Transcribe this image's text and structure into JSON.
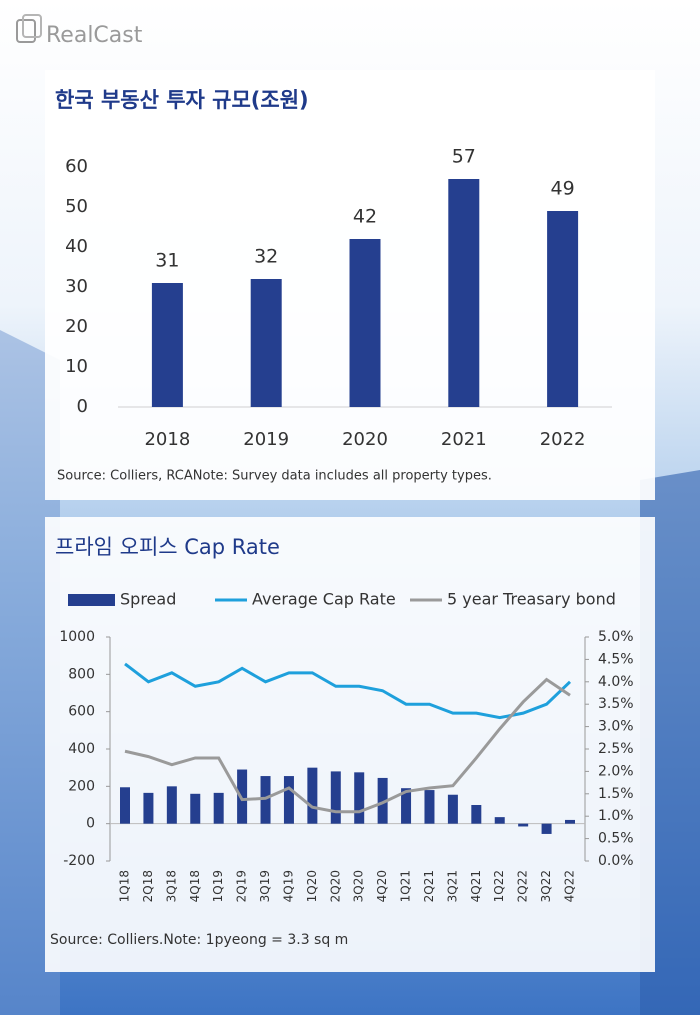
{
  "brand": "RealCast",
  "chart_data": [
    {
      "type": "bar",
      "title": "한국 부동산 투자 규모(조원)",
      "categories": [
        "2018",
        "2019",
        "2020",
        "2021",
        "2022"
      ],
      "values": [
        31,
        32,
        42,
        57,
        49
      ],
      "color": "#253f8f",
      "ylim": [
        0,
        60
      ],
      "yticks": [
        0,
        10,
        20,
        30,
        40,
        50,
        60
      ],
      "grid": false,
      "note": "Source: Colliers, RCANote: Survey data includes all property types."
    },
    {
      "type": "combo",
      "title": "프라임 오피스 Cap Rate",
      "categories": [
        "1Q18",
        "2Q18",
        "3Q18",
        "4Q18",
        "1Q19",
        "2Q19",
        "3Q19",
        "4Q19",
        "1Q20",
        "2Q20",
        "3Q20",
        "4Q20",
        "1Q21",
        "2Q21",
        "3Q21",
        "4Q21",
        "1Q22",
        "2Q22",
        "3Q22",
        "4Q22"
      ],
      "series": [
        {
          "name": "Spread",
          "type": "bar",
          "color": "#253f8f",
          "axis": "y",
          "values": [
            195,
            165,
            200,
            160,
            165,
            290,
            255,
            255,
            300,
            280,
            275,
            245,
            190,
            180,
            155,
            100,
            35,
            -15,
            -55,
            20
          ]
        },
        {
          "name": "Average Cap Rate",
          "type": "line",
          "color": "#1ea0dc",
          "axis": "y2",
          "values": [
            4.4,
            4.0,
            4.2,
            3.9,
            4.0,
            4.3,
            4.0,
            4.2,
            4.2,
            3.9,
            3.9,
            3.8,
            3.5,
            3.5,
            3.3,
            3.3,
            3.2,
            3.3,
            3.5,
            4.0
          ]
        },
        {
          "name": "5 year Treasary bond",
          "type": "line",
          "color": "#9a9a9a",
          "axis": "y2",
          "values": [
            2.45,
            2.33,
            2.15,
            2.3,
            2.3,
            1.37,
            1.4,
            1.63,
            1.2,
            1.1,
            1.1,
            1.3,
            1.55,
            1.63,
            1.68,
            2.3,
            2.95,
            3.55,
            4.05,
            3.7
          ]
        }
      ],
      "ylim": [
        -200,
        1000
      ],
      "yticks": [
        -200,
        0,
        200,
        400,
        600,
        800,
        1000
      ],
      "y2lim": [
        0,
        5
      ],
      "y2ticks": [
        {
          "value": 0,
          "label": "0.0%"
        },
        {
          "value": 0.5,
          "label": "0.5%"
        },
        {
          "value": 1,
          "label": "1.0%"
        },
        {
          "value": 1.5,
          "label": "1.5%"
        },
        {
          "value": 2,
          "label": "2.0%"
        },
        {
          "value": 2.5,
          "label": "2.5%"
        },
        {
          "value": 3,
          "label": "3.0%"
        },
        {
          "value": 3.5,
          "label": "3.5%"
        },
        {
          "value": 4,
          "label": "4.0%"
        },
        {
          "value": 4.5,
          "label": "4.5%"
        },
        {
          "value": 5,
          "label": "5.0%"
        }
      ],
      "legend": "top",
      "note": "Source: Colliers.Note: 1pyeong = 3.3 sq m"
    }
  ]
}
